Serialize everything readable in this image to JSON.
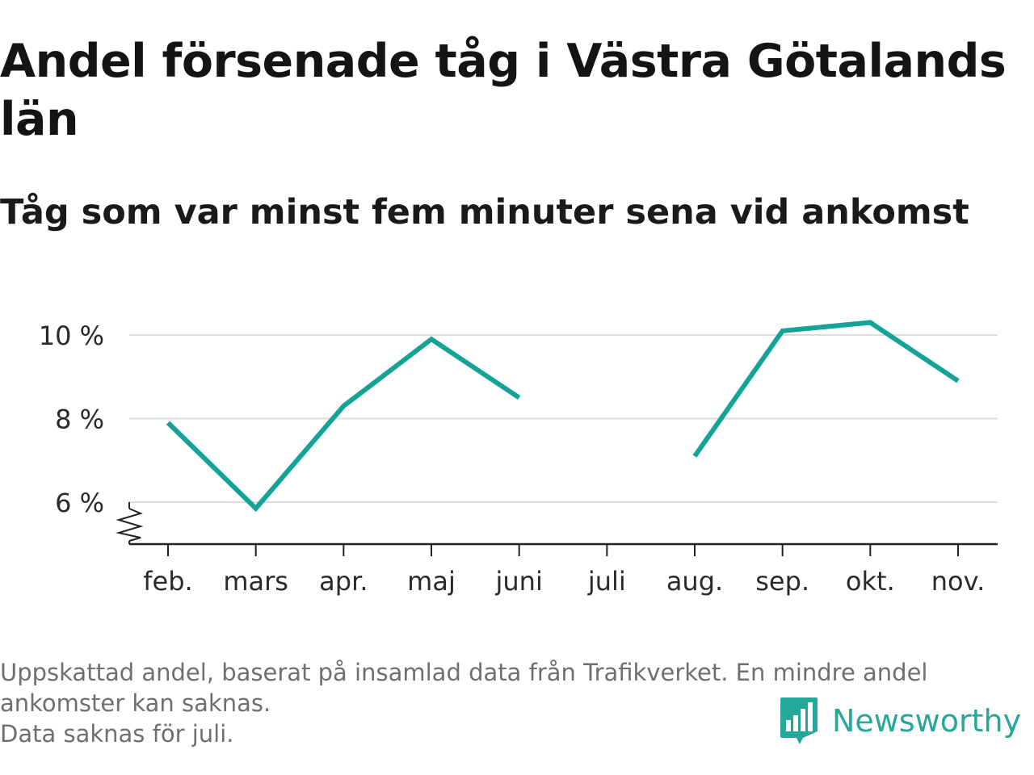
{
  "title": "Andel försenade tåg i Västra Götalands län",
  "subtitle": "Tåg som var minst fem minuter sena vid ankomst",
  "footer": {
    "note_line1": "Uppskattad andel, baserat på insamlad data från Trafikverket. En mindre andel ankomster kan saknas.",
    "note_line2": "Data saknas för juli."
  },
  "brand": {
    "name": "Newsworthy",
    "color": "#25a79a",
    "icon": "newsworthy-logo-icon"
  },
  "colors": {
    "line": "#14a398",
    "grid": "#dddddd",
    "axis": "#222222",
    "text": "#2a2a2a"
  },
  "chart_data": {
    "type": "line",
    "categories": [
      "feb.",
      "mars",
      "apr.",
      "maj",
      "juni",
      "juli",
      "aug.",
      "sep.",
      "okt.",
      "nov."
    ],
    "series": [
      {
        "values": [
          7.9,
          5.85,
          8.3,
          9.9,
          8.5,
          null,
          7.1,
          10.1,
          10.3,
          8.9
        ]
      }
    ],
    "yticks": [
      6,
      8,
      10
    ],
    "ytick_labels": [
      "6 %",
      "8 %",
      "10 %"
    ],
    "ylim": [
      5,
      10.6
    ],
    "y_axis_break": true,
    "grid": true,
    "legend": "none"
  }
}
